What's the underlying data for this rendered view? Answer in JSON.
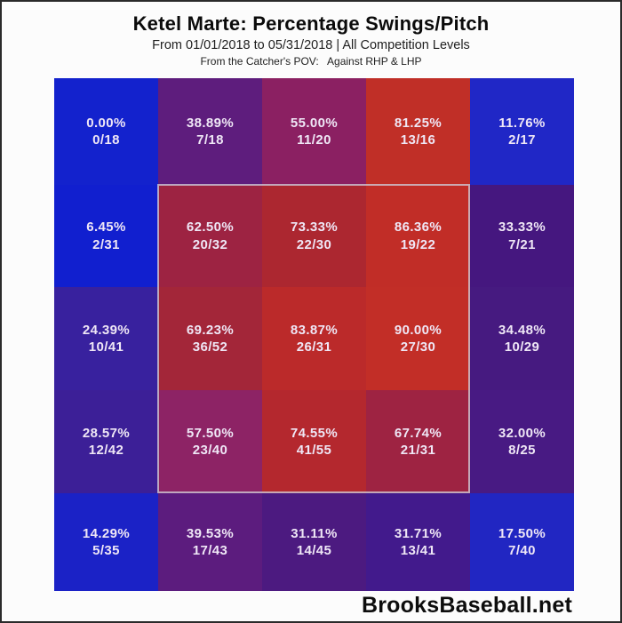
{
  "chart_data": {
    "type": "heatmap",
    "title": "Ketel Marte: Percentage Swings/Pitch",
    "subtitle": "From 01/01/2018 to 05/31/2018 | All Competition Levels",
    "subtitle2": "From the Catcher's POV:   Against RHP & LHP",
    "watermark": "BrooksBaseball.net",
    "rows": 5,
    "cols": 5,
    "legend": "none",
    "axes": "none (pitch-location grid, catcher's point of view)",
    "colormap": {
      "low": "#1322cd",
      "mid": "#8b2062",
      "high": "#c22e27",
      "note": "0% swings = blue, 100% swings = red"
    },
    "strike_zone": {
      "outline_color": "#cdc8d4",
      "covers": "inner 3x3 cells (columns 2-4, rows 2-4)"
    },
    "cells": [
      [
        {
          "pct": "0.00%",
          "count": "0/18",
          "value": 0.0,
          "color": "#1322cd"
        },
        {
          "pct": "38.89%",
          "count": "7/18",
          "value": 38.89,
          "color": "#5e1d7d"
        },
        {
          "pct": "55.00%",
          "count": "11/20",
          "value": 55.0,
          "color": "#8b2062"
        },
        {
          "pct": "81.25%",
          "count": "13/16",
          "value": 81.25,
          "color": "#c02f27"
        },
        {
          "pct": "11.76%",
          "count": "2/17",
          "value": 11.76,
          "color": "#2027c6"
        }
      ],
      [
        {
          "pct": "6.45%",
          "count": "2/31",
          "value": 6.45,
          "color": "#111fcf"
        },
        {
          "pct": "62.50%",
          "count": "20/32",
          "value": 62.5,
          "color": "#9d2342"
        },
        {
          "pct": "73.33%",
          "count": "22/30",
          "value": 73.33,
          "color": "#ac2730"
        },
        {
          "pct": "86.36%",
          "count": "19/22",
          "value": 86.36,
          "color": "#c12d27"
        },
        {
          "pct": "33.33%",
          "count": "7/21",
          "value": 33.33,
          "color": "#45177f"
        }
      ],
      [
        {
          "pct": "24.39%",
          "count": "10/41",
          "value": 24.39,
          "color": "#38219e"
        },
        {
          "pct": "69.23%",
          "count": "36/52",
          "value": 69.23,
          "color": "#a32639"
        },
        {
          "pct": "83.87%",
          "count": "26/31",
          "value": 83.87,
          "color": "#bb2a2a"
        },
        {
          "pct": "90.00%",
          "count": "27/30",
          "value": 90.0,
          "color": "#c22e27"
        },
        {
          "pct": "34.48%",
          "count": "10/29",
          "value": 34.48,
          "color": "#461a80"
        }
      ],
      [
        {
          "pct": "28.57%",
          "count": "12/42",
          "value": 28.57,
          "color": "#3c1f97"
        },
        {
          "pct": "57.50%",
          "count": "23/40",
          "value": 57.5,
          "color": "#8d2365"
        },
        {
          "pct": "74.55%",
          "count": "41/55",
          "value": 74.55,
          "color": "#b4282e"
        },
        {
          "pct": "67.74%",
          "count": "21/31",
          "value": 67.74,
          "color": "#9e2342"
        },
        {
          "pct": "32.00%",
          "count": "8/25",
          "value": 32.0,
          "color": "#481a83"
        }
      ],
      [
        {
          "pct": "14.29%",
          "count": "5/35",
          "value": 14.29,
          "color": "#1b22c6"
        },
        {
          "pct": "39.53%",
          "count": "17/43",
          "value": 39.53,
          "color": "#5c1c7e"
        },
        {
          "pct": "31.11%",
          "count": "14/45",
          "value": 31.11,
          "color": "#4c1a80"
        },
        {
          "pct": "31.71%",
          "count": "13/41",
          "value": 31.71,
          "color": "#421a8c"
        },
        {
          "pct": "17.50%",
          "count": "7/40",
          "value": 17.5,
          "color": "#2126c2"
        }
      ]
    ]
  }
}
